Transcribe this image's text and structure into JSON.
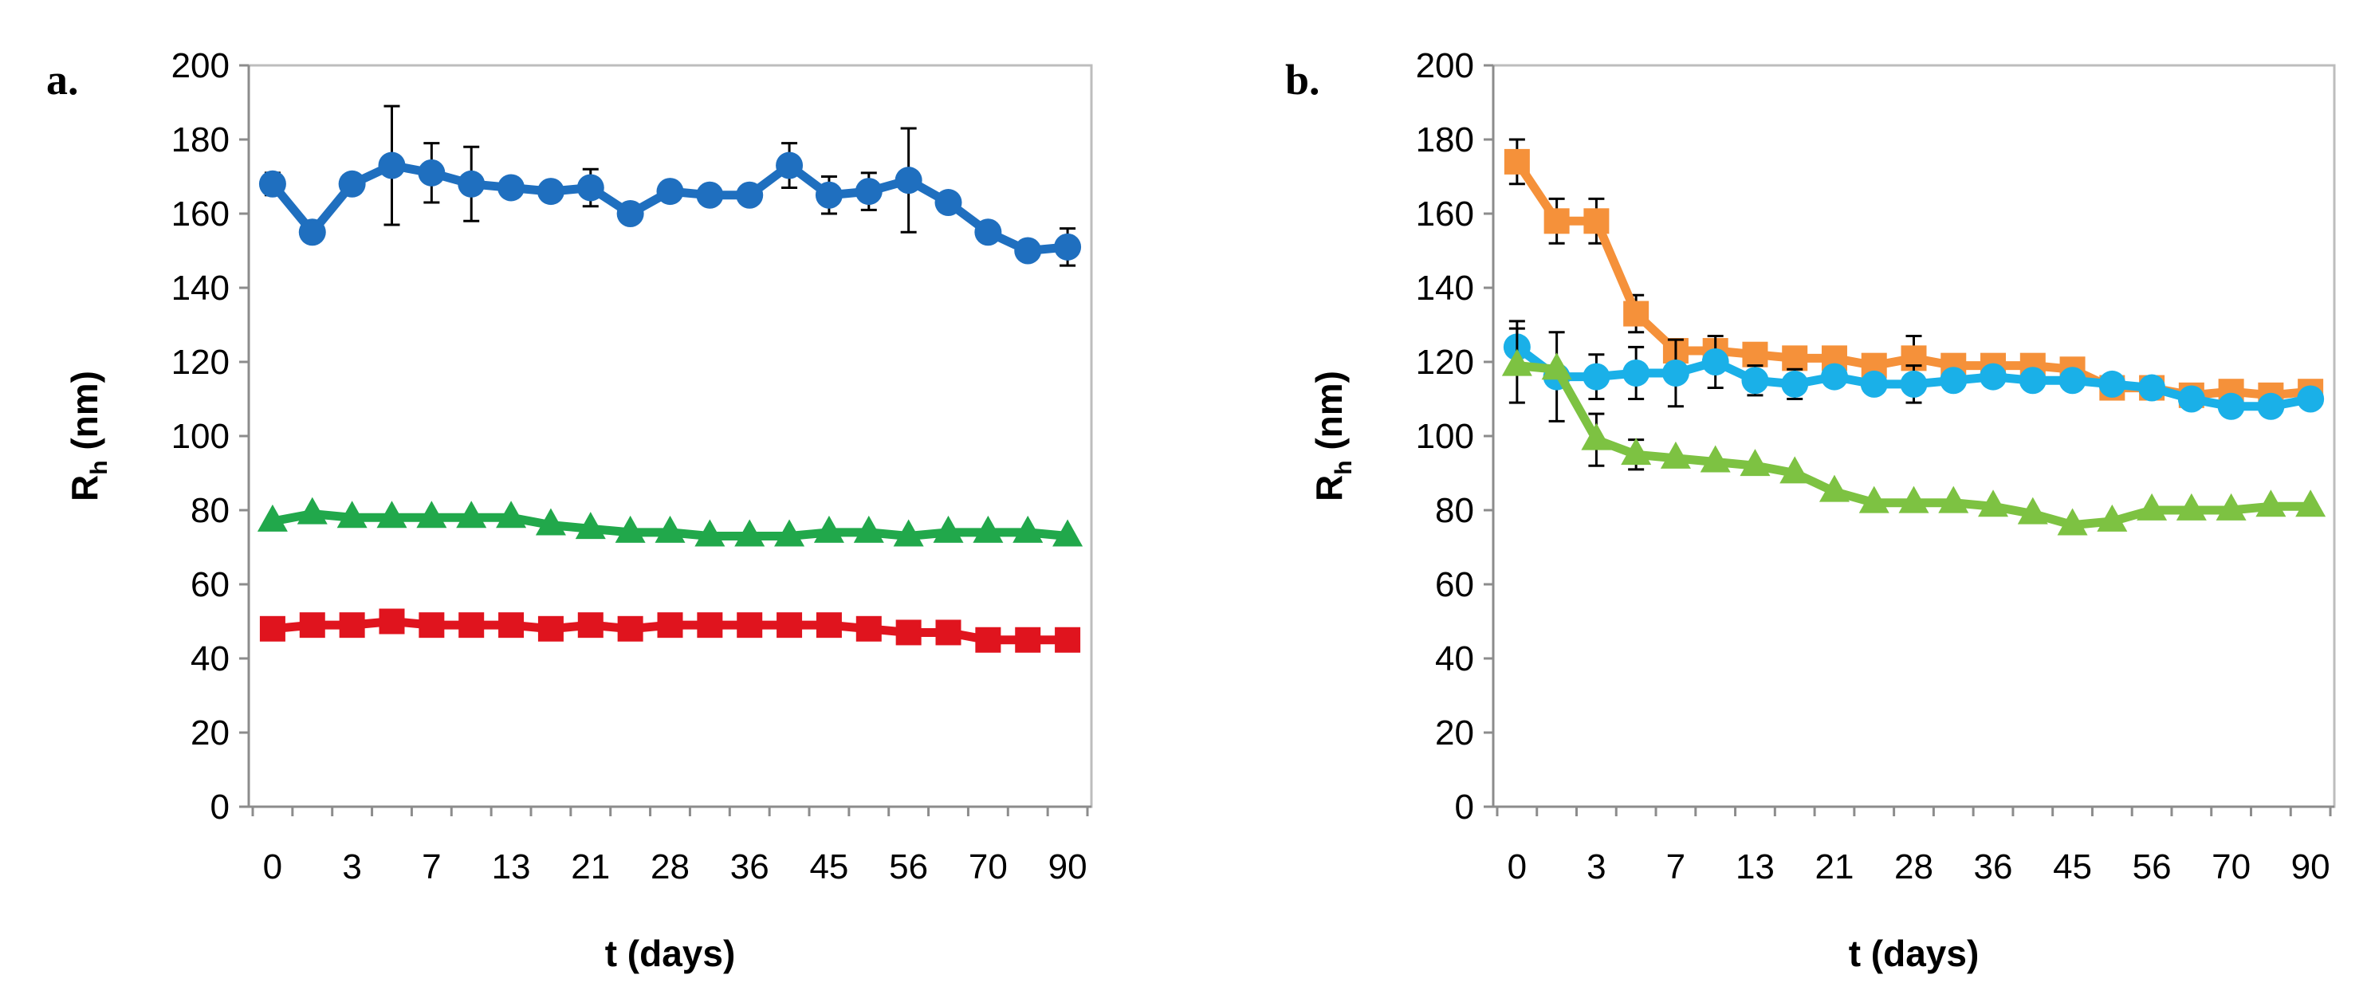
{
  "chart_data": [
    {
      "panel": "a.",
      "type": "line",
      "xlabel": "t (days)",
      "ylabel_main": "R",
      "ylabel_sub": "h",
      "ylabel_rest": " (nm)",
      "ylim": [
        0,
        200
      ],
      "yticks": [
        "0",
        "20",
        "40",
        "60",
        "80",
        "100",
        "120",
        "140",
        "160",
        "180",
        "200"
      ],
      "x": [
        0,
        1,
        3,
        5,
        7,
        10,
        13,
        17,
        21,
        24,
        28,
        31,
        36,
        40,
        45,
        50,
        56,
        63,
        70,
        80,
        90
      ],
      "xtick_labels": [
        "0",
        "3",
        "7",
        "13",
        "21",
        "28",
        "36",
        "45",
        "56",
        "70",
        "90"
      ],
      "series": [
        {
          "name": "blue",
          "color": "#1f6fbf",
          "marker": "circle",
          "values": [
            168,
            155,
            168,
            173,
            171,
            168,
            167,
            166,
            167,
            160,
            166,
            165,
            165,
            173,
            165,
            166,
            169,
            163,
            155,
            150,
            151
          ],
          "errors": [
            3,
            0,
            2,
            16,
            8,
            10,
            0,
            0,
            5,
            0,
            0,
            0,
            0,
            6,
            5,
            5,
            14,
            0,
            0,
            0,
            5
          ]
        },
        {
          "name": "green",
          "color": "#21a84b",
          "marker": "triangle",
          "values": [
            77,
            79,
            78,
            78,
            78,
            78,
            78,
            76,
            75,
            74,
            74,
            73,
            73,
            73,
            74,
            74,
            73,
            74,
            74,
            74,
            73
          ],
          "errors": []
        },
        {
          "name": "red",
          "color": "#e0141e",
          "marker": "square",
          "values": [
            48,
            49,
            49,
            50,
            49,
            49,
            49,
            48,
            49,
            48,
            49,
            49,
            49,
            49,
            49,
            48,
            47,
            47,
            45,
            45,
            45
          ],
          "errors": []
        }
      ]
    },
    {
      "panel": "b.",
      "type": "line",
      "xlabel": "t (days)",
      "ylabel_main": "R",
      "ylabel_sub": "h",
      "ylabel_rest": " (nm)",
      "ylim": [
        0,
        200
      ],
      "yticks": [
        "0",
        "20",
        "40",
        "60",
        "80",
        "100",
        "120",
        "140",
        "160",
        "180",
        "200"
      ],
      "x": [
        0,
        1,
        3,
        5,
        7,
        10,
        13,
        17,
        21,
        24,
        28,
        31,
        36,
        40,
        45,
        50,
        56,
        63,
        70,
        80,
        90
      ],
      "xtick_labels": [
        "0",
        "3",
        "7",
        "13",
        "21",
        "28",
        "36",
        "45",
        "56",
        "70",
        "90"
      ],
      "series": [
        {
          "name": "orange",
          "color": "#f5913a",
          "marker": "square",
          "values": [
            174,
            158,
            158,
            133,
            123,
            123,
            122,
            121,
            121,
            119,
            121,
            119,
            119,
            119,
            118,
            113,
            113,
            111,
            112,
            111,
            112
          ],
          "errors": [
            6,
            6,
            6,
            5,
            0,
            0,
            0,
            0,
            0,
            0,
            6,
            0,
            0,
            0,
            0,
            0,
            0,
            0,
            0,
            0,
            0
          ]
        },
        {
          "name": "cyan",
          "color": "#1ab0e8",
          "marker": "circle",
          "values": [
            124,
            116,
            116,
            117,
            117,
            120,
            115,
            114,
            116,
            114,
            114,
            115,
            116,
            115,
            115,
            114,
            113,
            110,
            108,
            108,
            110
          ],
          "errors": [
            7,
            12,
            6,
            7,
            9,
            7,
            4,
            4,
            0,
            0,
            5,
            0,
            0,
            0,
            0,
            0,
            0,
            0,
            0,
            0,
            0
          ]
        },
        {
          "name": "light-green",
          "color": "#7dc242",
          "marker": "triangle",
          "values": [
            119,
            118,
            99,
            95,
            94,
            93,
            92,
            90,
            85,
            82,
            82,
            82,
            81,
            79,
            76,
            77,
            80,
            80,
            80,
            81,
            81
          ],
          "errors": [
            10,
            0,
            7,
            4,
            0,
            0,
            0,
            0,
            0,
            0,
            0,
            0,
            0,
            0,
            0,
            0,
            0,
            0,
            0,
            0,
            0
          ]
        }
      ]
    }
  ]
}
